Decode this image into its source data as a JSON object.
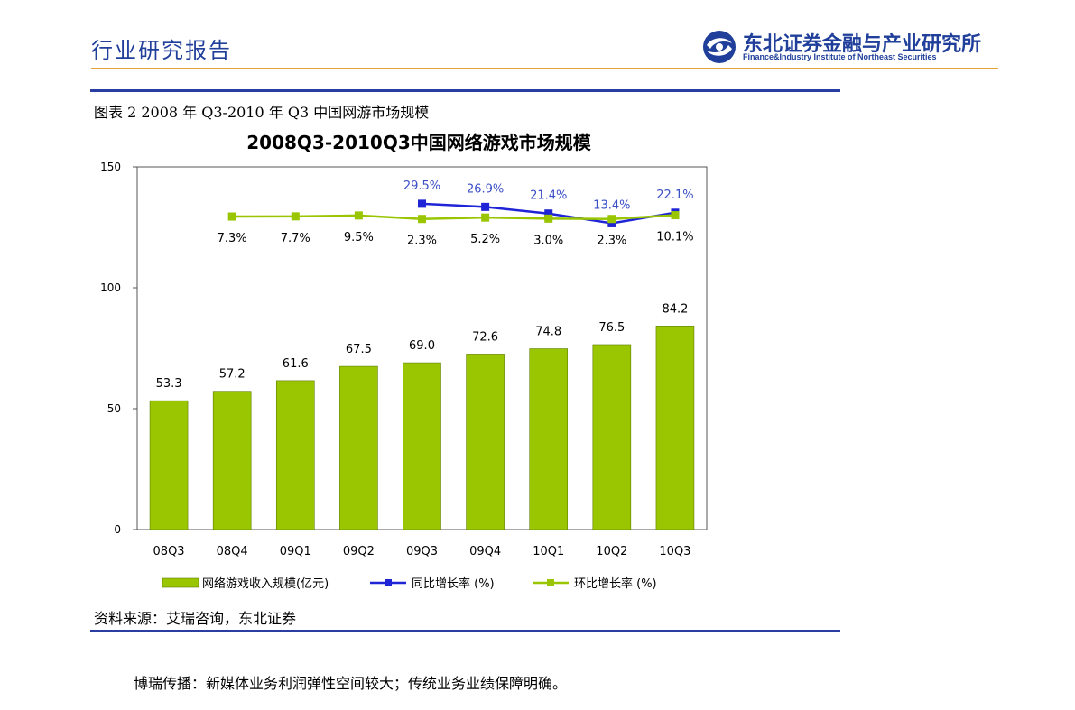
{
  "header": {
    "title": "行业研究报告"
  },
  "logo": {
    "name_cn": "东北证券金融与产业研究所",
    "name_en": "Finance&Industry Institute of Northeast Securities",
    "icon": "northeast-securities-logo-icon",
    "color": "#1f3f9a"
  },
  "caption": "图表 2 2008 年 Q3-2010 年 Q3 中国网游市场规模",
  "chart_data": {
    "type": "bar",
    "title": "2008Q3-2010Q3中国网络游戏市场规模",
    "categories": [
      "08Q3",
      "08Q4",
      "09Q1",
      "09Q2",
      "09Q3",
      "09Q4",
      "10Q1",
      "10Q2",
      "10Q3"
    ],
    "ylim": [
      0,
      150
    ],
    "yticks": [
      0,
      50,
      100,
      150
    ],
    "grid": false,
    "legend_position": "bottom",
    "series": [
      {
        "name": "网络游戏收入规模(亿元)",
        "type": "bar",
        "color": "#99c600",
        "values": [
          53.3,
          57.2,
          61.6,
          67.5,
          69.0,
          72.6,
          74.8,
          76.5,
          84.2
        ],
        "labels": [
          "53.3",
          "57.2",
          "61.6",
          "67.5",
          "69.0",
          "72.6",
          "74.8",
          "76.5",
          "84.2"
        ]
      },
      {
        "name": "同比增长率 (%)",
        "type": "line",
        "color": "#1f24d6",
        "label_color": "#3a4fc6",
        "values": [
          null,
          null,
          null,
          null,
          29.5,
          26.9,
          21.4,
          13.4,
          22.1
        ],
        "labels": [
          "",
          "",
          "",
          "",
          "29.5%",
          "26.9%",
          "21.4%",
          "13.4%",
          "22.1%"
        ]
      },
      {
        "name": "环比增长率 (%)",
        "type": "line",
        "color": "#99c600",
        "values": [
          null,
          7.3,
          7.7,
          9.5,
          2.3,
          5.2,
          3.0,
          2.3,
          10.1
        ],
        "labels": [
          "",
          "7.3%",
          "7.7%",
          "9.5%",
          "2.3%",
          "5.2%",
          "3.0%",
          "2.3%",
          "10.1%"
        ]
      }
    ]
  },
  "source": "资料来源：艾瑞咨询，东北证券",
  "body_text": "博瑞传播：新媒体业务利润弹性空间较大；传统业务业绩保障明确。"
}
